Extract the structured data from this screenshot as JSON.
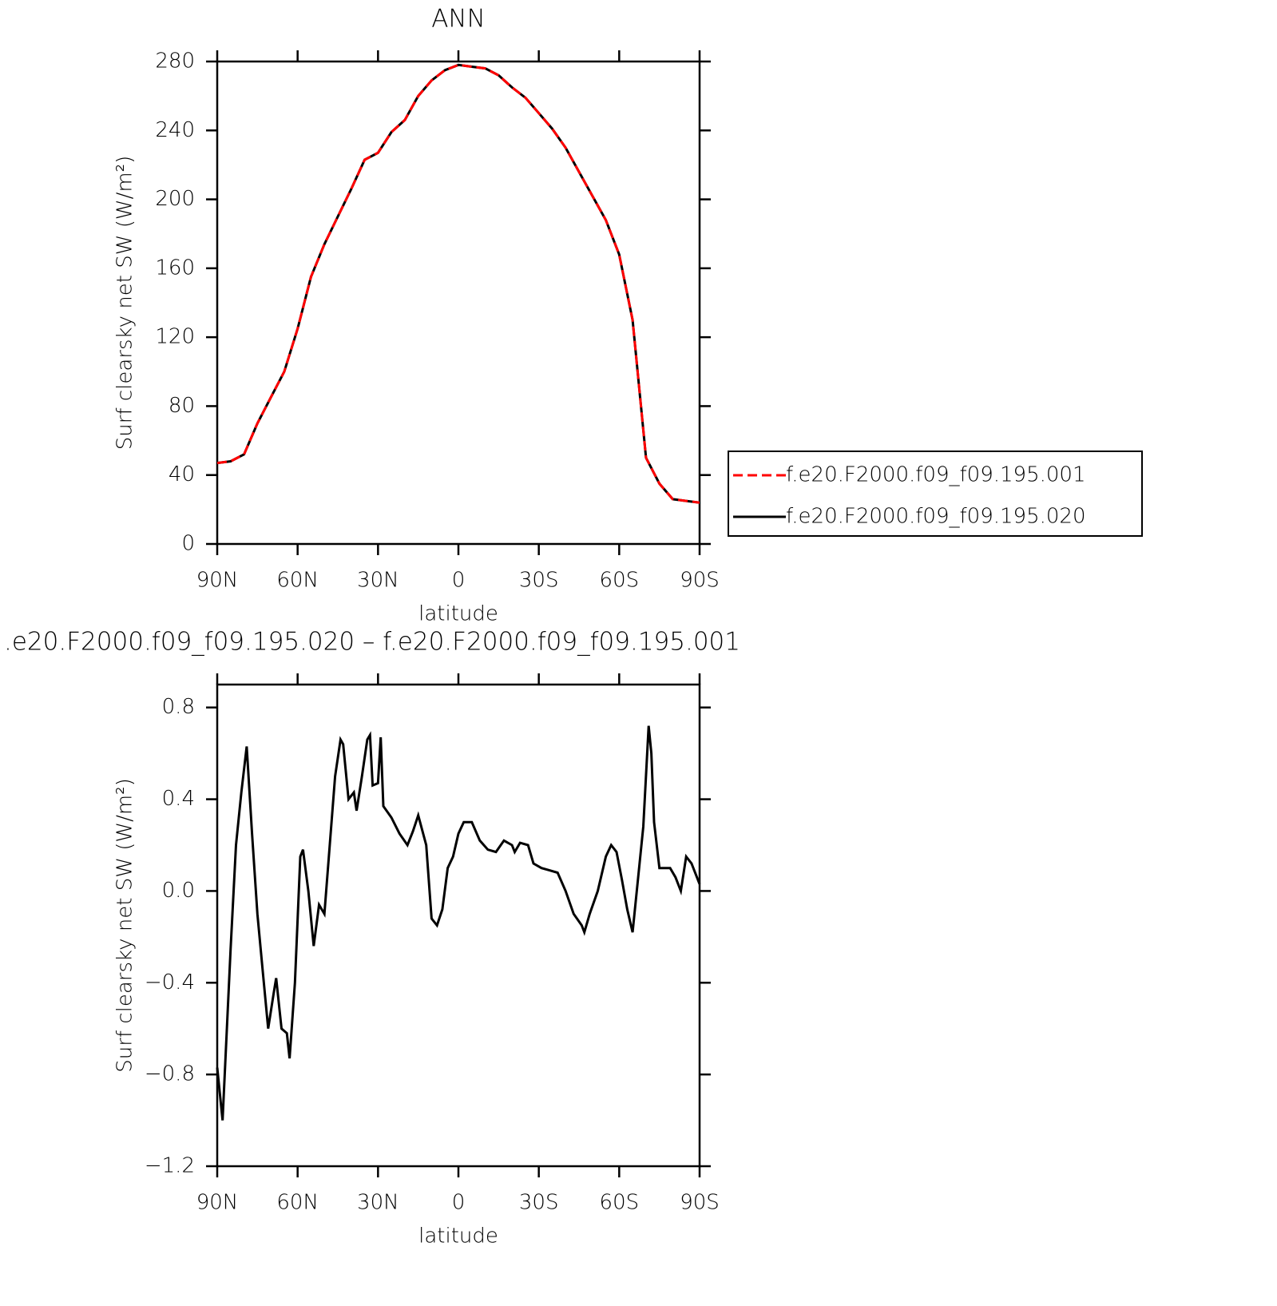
{
  "chart_data": [
    {
      "type": "line",
      "title": "ANN",
      "xlabel": "latitude",
      "ylabel": "Surf clearsky net SW (W/m²)",
      "x": [
        90,
        85,
        80,
        75,
        70,
        65,
        60,
        55,
        50,
        45,
        40,
        35,
        30,
        25,
        20,
        15,
        10,
        5,
        0,
        -5,
        -10,
        -15,
        -20,
        -25,
        -30,
        -35,
        -40,
        -45,
        -50,
        -55,
        -60,
        -65,
        -70,
        -75,
        -80,
        -85,
        -90
      ],
      "series": [
        {
          "name": "f.e20.F2000.f09_f09.195.001",
          "color": "#ff0000",
          "dashed": true,
          "values": [
            47,
            48,
            52,
            70,
            85,
            100,
            125,
            155,
            174,
            190,
            206,
            223,
            227,
            239,
            246,
            260,
            269,
            275,
            278,
            277,
            276,
            272,
            265,
            259,
            250,
            241,
            230,
            216,
            202,
            188,
            168,
            130,
            50,
            35,
            26,
            25,
            24
          ]
        },
        {
          "name": "f.e20.F2000.f09_f09.195.020",
          "color": "#000000",
          "values": [
            47,
            48,
            52,
            70,
            85,
            100,
            125,
            155,
            174,
            190,
            206,
            223,
            227,
            239,
            246,
            260,
            269,
            275,
            278,
            277,
            276,
            272,
            265,
            259,
            250,
            241,
            230,
            216,
            202,
            188,
            168,
            130,
            50,
            35,
            26,
            25,
            24
          ]
        }
      ],
      "xlim": [
        90,
        -90
      ],
      "xticks": [
        {
          "value": 90,
          "label": "90N"
        },
        {
          "value": 60,
          "label": "60N"
        },
        {
          "value": 30,
          "label": "30N"
        },
        0,
        {
          "value": -30,
          "label": "30S"
        },
        {
          "value": -60,
          "label": "60S"
        },
        {
          "value": -90,
          "label": "90S"
        }
      ],
      "ylim": [
        0,
        280
      ],
      "yticks": [
        0,
        40,
        80,
        120,
        160,
        200,
        240,
        280
      ],
      "legend": "right"
    },
    {
      "type": "line",
      "title": ".e20.F2000.f09_f09.195.020 – f.e20.F2000.f09_f09.195.001",
      "xlabel": "latitude",
      "ylabel": "Surf clearsky net SW (W/m²)",
      "x": [
        90,
        88,
        85,
        83,
        81,
        79,
        77,
        75,
        73,
        71,
        69,
        68,
        66,
        64,
        63,
        61,
        59,
        58,
        56,
        54,
        52,
        50,
        48,
        46,
        44,
        43,
        41,
        39,
        38,
        36,
        34,
        33,
        32,
        30,
        29,
        28,
        25,
        22,
        19,
        17,
        15,
        12,
        10,
        8,
        6,
        4,
        2,
        0,
        -2,
        -5,
        -8,
        -11,
        -14,
        -17,
        -20,
        -21,
        -23,
        -26,
        -28,
        -31,
        -34,
        -37,
        -40,
        -43,
        -46,
        -47,
        -49,
        -52,
        -55,
        -57,
        -59,
        -61,
        -63,
        -65,
        -67,
        -69,
        -71,
        -72,
        -73,
        -75,
        -77,
        -79,
        -81,
        -83,
        -85,
        -87,
        -90
      ],
      "series": [
        {
          "color": "#000000",
          "values": [
            -0.77,
            -1.0,
            -0.25,
            0.2,
            0.43,
            0.63,
            0.25,
            -0.1,
            -0.35,
            -0.6,
            -0.45,
            -0.38,
            -0.6,
            -0.62,
            -0.73,
            -0.4,
            0.15,
            0.18,
            0.0,
            -0.24,
            -0.06,
            -0.1,
            0.2,
            0.5,
            0.66,
            0.64,
            0.4,
            0.43,
            0.35,
            0.5,
            0.66,
            0.68,
            0.46,
            0.47,
            0.67,
            0.37,
            0.32,
            0.25,
            0.2,
            0.26,
            0.33,
            0.2,
            -0.12,
            -0.15,
            -0.08,
            0.1,
            0.15,
            0.25,
            0.3,
            0.3,
            0.22,
            0.18,
            0.17,
            0.22,
            0.2,
            0.17,
            0.21,
            0.2,
            0.12,
            0.1,
            0.09,
            0.08,
            0.0,
            -0.1,
            -0.15,
            -0.18,
            -0.1,
            0.0,
            0.15,
            0.2,
            0.17,
            0.05,
            -0.08,
            -0.18,
            0.05,
            0.28,
            0.72,
            0.6,
            0.3,
            0.1,
            0.1,
            0.1,
            0.06,
            0.0,
            0.15,
            0.12,
            0.03
          ]
        }
      ],
      "xlim": [
        90,
        -90
      ],
      "xticks": [
        {
          "value": 90,
          "label": "90N"
        },
        {
          "value": 60,
          "label": "60N"
        },
        {
          "value": 30,
          "label": "30N"
        },
        0,
        {
          "value": -30,
          "label": "30S"
        },
        {
          "value": -60,
          "label": "60S"
        },
        {
          "value": -90,
          "label": "90S"
        }
      ],
      "ylim": [
        -1.2,
        0.9
      ],
      "yticks": [
        {
          "value": -1.2,
          "label": "−1.2"
        },
        {
          "value": -0.8,
          "label": "−0.8"
        },
        {
          "value": -0.4,
          "label": "−0.4"
        },
        {
          "value": 0,
          "label": "0.0"
        },
        0.4,
        0.8
      ]
    }
  ]
}
